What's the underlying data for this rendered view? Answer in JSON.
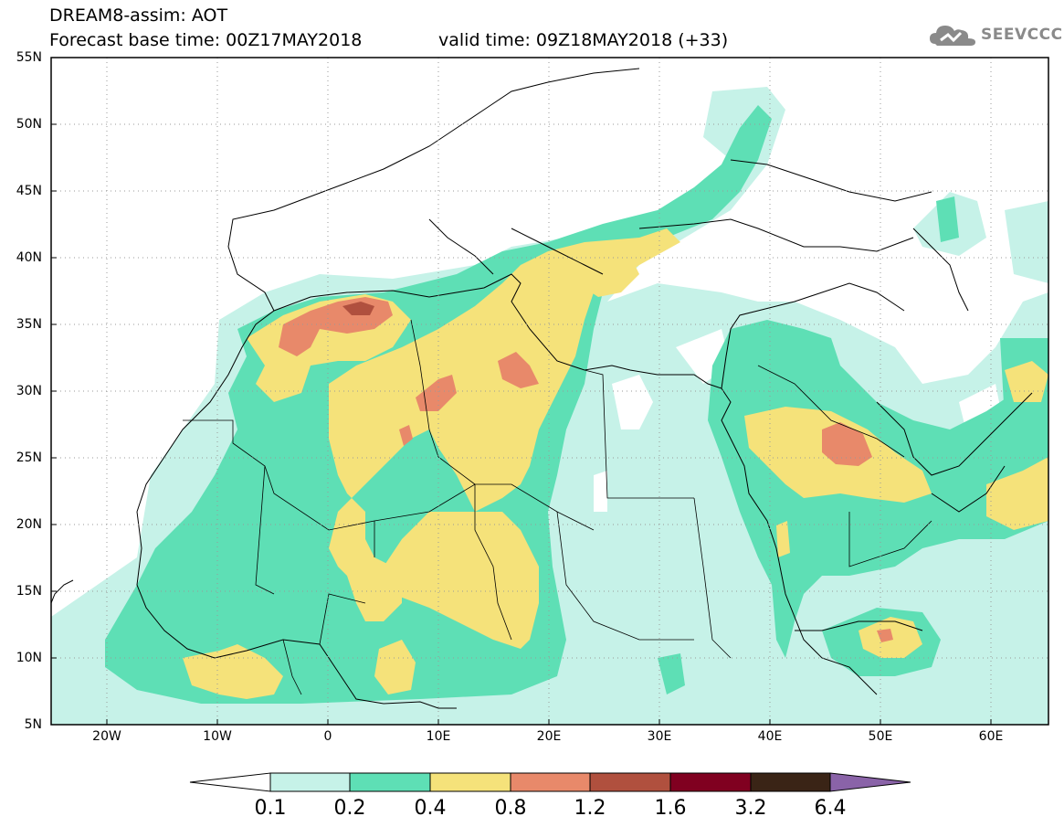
{
  "header": {
    "title": "DREAM8-assim: AOT",
    "base_time": "Forecast base time: 00Z17MAY2018",
    "valid_time": "valid time: 09Z18MAY2018 (+33)",
    "logo_text": "SEEVCCC",
    "logo_icon": "cloud-logo-icon"
  },
  "map": {
    "lat_labels": [
      "55N",
      "50N",
      "45N",
      "40N",
      "35N",
      "30N",
      "25N",
      "20N",
      "15N",
      "10N",
      "5N"
    ],
    "lon_labels": [
      "20W",
      "10W",
      "0",
      "10E",
      "20E",
      "30E",
      "40E",
      "50E",
      "60E"
    ],
    "lat_range": [
      5,
      55
    ],
    "lon_range": [
      -25,
      65
    ]
  },
  "colorbar": {
    "labels": [
      "0.1",
      "0.2",
      "0.4",
      "0.8",
      "1.2",
      "1.6",
      "3.2",
      "6.4"
    ],
    "colors": [
      "#ffffff",
      "#c6f2e8",
      "#5edfb5",
      "#f5e27a",
      "#e8896a",
      "#b0503e",
      "#800020",
      "#3a2416",
      "#8a63a8"
    ]
  },
  "colors": {
    "level_0_1": "#c6f2e8",
    "level_0_2": "#5edfb5",
    "level_0_4": "#f5e27a",
    "level_0_8": "#e8896a",
    "level_1_2": "#b0503e"
  }
}
